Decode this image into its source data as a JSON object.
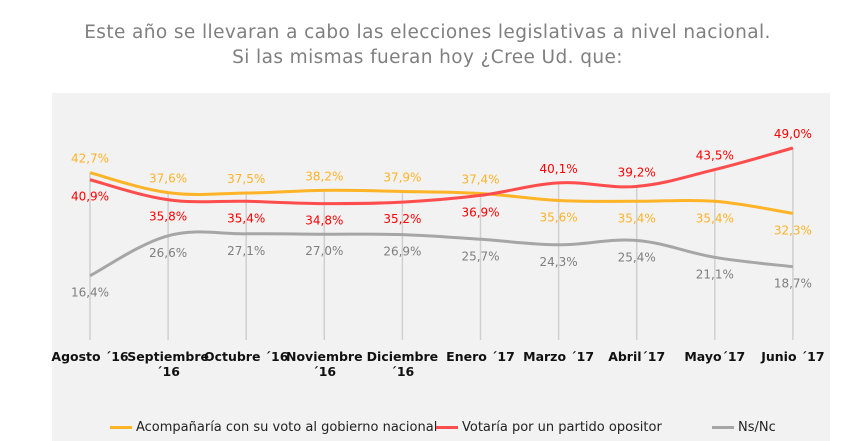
{
  "title": {
    "line1": "Este año se llevaran a cabo las elecciones legislativas a nivel nacional.",
    "line2": "Si las mismas fueran hoy ¿Cree Ud. que:"
  },
  "chart_data": {
    "type": "line",
    "categories": [
      [
        "Agosto ´16"
      ],
      [
        "Septiembre",
        "´16"
      ],
      [
        "Octubre ´16"
      ],
      [
        "Noviembre",
        "´16"
      ],
      [
        "Diciembre",
        "´16"
      ],
      [
        "Enero ´17"
      ],
      [
        "Marzo ´17"
      ],
      [
        "Abril´17"
      ],
      [
        "Mayo´17"
      ],
      [
        "Junio ´17"
      ]
    ],
    "ylim": [
      0,
      49
    ],
    "grid": "vertical",
    "legend_position": "bottom",
    "series": [
      {
        "name": "Acompañaría con su voto al gobierno nacional",
        "color": "#ffb327",
        "label_color": "#ffb327",
        "values": [
          42.7,
          37.6,
          37.5,
          38.2,
          37.9,
          37.4,
          35.6,
          35.4,
          35.4,
          32.3
        ],
        "labels": [
          "42,7%",
          "37,6%",
          "37,5%",
          "38,2%",
          "37,9%",
          "37,4%",
          "35,6%",
          "35,4%",
          "35,4%",
          "32,3%"
        ]
      },
      {
        "name": "Votaría por un partido opositor",
        "color": "#ff4d4d",
        "label_color": "#ff0000",
        "values": [
          40.9,
          35.8,
          35.4,
          34.8,
          35.2,
          36.9,
          40.1,
          39.2,
          43.5,
          49.0
        ],
        "labels": [
          "40,9%",
          "35,8%",
          "35,4%",
          "34,8%",
          "35,2%",
          "36,9%",
          "40,1%",
          "39,2%",
          "43,5%",
          "49,0%"
        ]
      },
      {
        "name": "Ns/Nc",
        "color": "#a6a6a6",
        "label_color": "#7f7f7f",
        "values": [
          16.4,
          26.6,
          27.1,
          27.0,
          26.9,
          25.7,
          24.3,
          25.4,
          21.1,
          18.7
        ],
        "labels": [
          "16,4%",
          "26,6%",
          "27,1%",
          "27,0%",
          "26,9%",
          "25,7%",
          "24,3%",
          "25,4%",
          "21,1%",
          "18,7%"
        ]
      }
    ]
  }
}
